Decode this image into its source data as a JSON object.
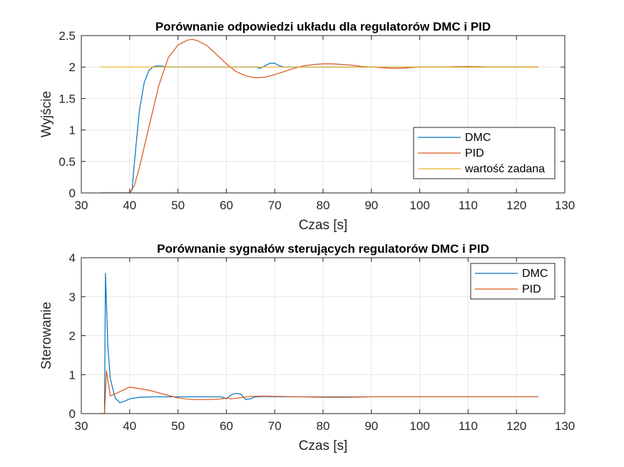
{
  "chart_data": [
    {
      "type": "line",
      "title": "Porównanie odpowiedzi układu dla regulatorów DMC i PID",
      "xlabel": "Czas [s]",
      "ylabel": "Wyjście",
      "xlim": [
        30,
        130
      ],
      "ylim": [
        0,
        2.5
      ],
      "xticks": [
        "30",
        "40",
        "50",
        "60",
        "70",
        "80",
        "90",
        "100",
        "110",
        "120",
        "130"
      ],
      "yticks": [
        "0",
        "0.5",
        "1",
        "1.5",
        "2",
        "2.5"
      ],
      "grid": true,
      "legend_position": "bottom-right",
      "series": [
        {
          "name": "DMC",
          "color": "#0072BD",
          "x": [
            34,
            40,
            40.5,
            41,
            42,
            43,
            44,
            45,
            46,
            47,
            48,
            50,
            55,
            60,
            65,
            66,
            67,
            68,
            69,
            70,
            71,
            72,
            74,
            80,
            90,
            100,
            110,
            124.5
          ],
          "y": [
            0,
            0,
            0.05,
            0.5,
            1.3,
            1.75,
            1.95,
            2.01,
            2.02,
            2.01,
            2.0,
            2.0,
            2.0,
            2.0,
            2.0,
            2.0,
            1.98,
            2.02,
            2.06,
            2.06,
            2.02,
            2.0,
            2.0,
            2.0,
            2.0,
            2.0,
            2.0,
            2.0
          ]
        },
        {
          "name": "PID",
          "color": "#D95319",
          "x": [
            34,
            40,
            41,
            42,
            44,
            46,
            48,
            50,
            52,
            53,
            54,
            56,
            58,
            60,
            62,
            64,
            66,
            68,
            70,
            72,
            74,
            76,
            78,
            80,
            82,
            84,
            86,
            88,
            90,
            92,
            94,
            96,
            98,
            100,
            105,
            110,
            115,
            120,
            124.5
          ],
          "y": [
            0,
            0,
            0.12,
            0.4,
            1.05,
            1.7,
            2.15,
            2.35,
            2.43,
            2.44,
            2.42,
            2.34,
            2.2,
            2.05,
            1.93,
            1.86,
            1.83,
            1.84,
            1.88,
            1.93,
            1.98,
            2.02,
            2.04,
            2.05,
            2.05,
            2.04,
            2.03,
            2.01,
            2.0,
            1.99,
            1.98,
            1.98,
            1.99,
            2.0,
            2.0,
            2.01,
            2.0,
            2.0,
            2.0
          ]
        },
        {
          "name": "wartość zadana",
          "color": "#EDB120",
          "x": [
            34,
            124.5
          ],
          "y": [
            2,
            2
          ]
        }
      ]
    },
    {
      "type": "line",
      "title": "Porównanie sygnałów sterujących regulatorów DMC i PID",
      "xlabel": "Czas [s]",
      "ylabel": "Sterowanie",
      "xlim": [
        30,
        130
      ],
      "ylim": [
        0,
        4
      ],
      "xticks": [
        "30",
        "40",
        "50",
        "60",
        "70",
        "80",
        "90",
        "100",
        "110",
        "120",
        "130"
      ],
      "yticks": [
        "0",
        "1",
        "2",
        "3",
        "4"
      ],
      "grid": true,
      "legend_position": "top-right",
      "series": [
        {
          "name": "DMC",
          "color": "#0072BD",
          "x": [
            34,
            34.8,
            35,
            35.5,
            36,
            37,
            38,
            39,
            40,
            42,
            45,
            50,
            55,
            59,
            60,
            61,
            62,
            63,
            64,
            65,
            66,
            68,
            70,
            80,
            90,
            100,
            110,
            124.5
          ],
          "y": [
            0,
            0,
            3.6,
            1.7,
            0.9,
            0.4,
            0.28,
            0.32,
            0.38,
            0.42,
            0.43,
            0.43,
            0.43,
            0.43,
            0.38,
            0.48,
            0.52,
            0.5,
            0.36,
            0.38,
            0.43,
            0.44,
            0.43,
            0.43,
            0.43,
            0.43,
            0.43,
            0.43
          ]
        },
        {
          "name": "PID",
          "color": "#D95319",
          "x": [
            34,
            34.8,
            35.2,
            36,
            40,
            44,
            47,
            50,
            53,
            56,
            58,
            59,
            60,
            61,
            63,
            65,
            68,
            70,
            75,
            80,
            85,
            90,
            100,
            110,
            124.5
          ],
          "y": [
            0,
            0,
            1.1,
            0.45,
            0.68,
            0.6,
            0.5,
            0.4,
            0.36,
            0.36,
            0.37,
            0.38,
            0.4,
            0.38,
            0.41,
            0.44,
            0.45,
            0.44,
            0.43,
            0.42,
            0.42,
            0.43,
            0.43,
            0.43,
            0.43
          ]
        }
      ]
    }
  ]
}
